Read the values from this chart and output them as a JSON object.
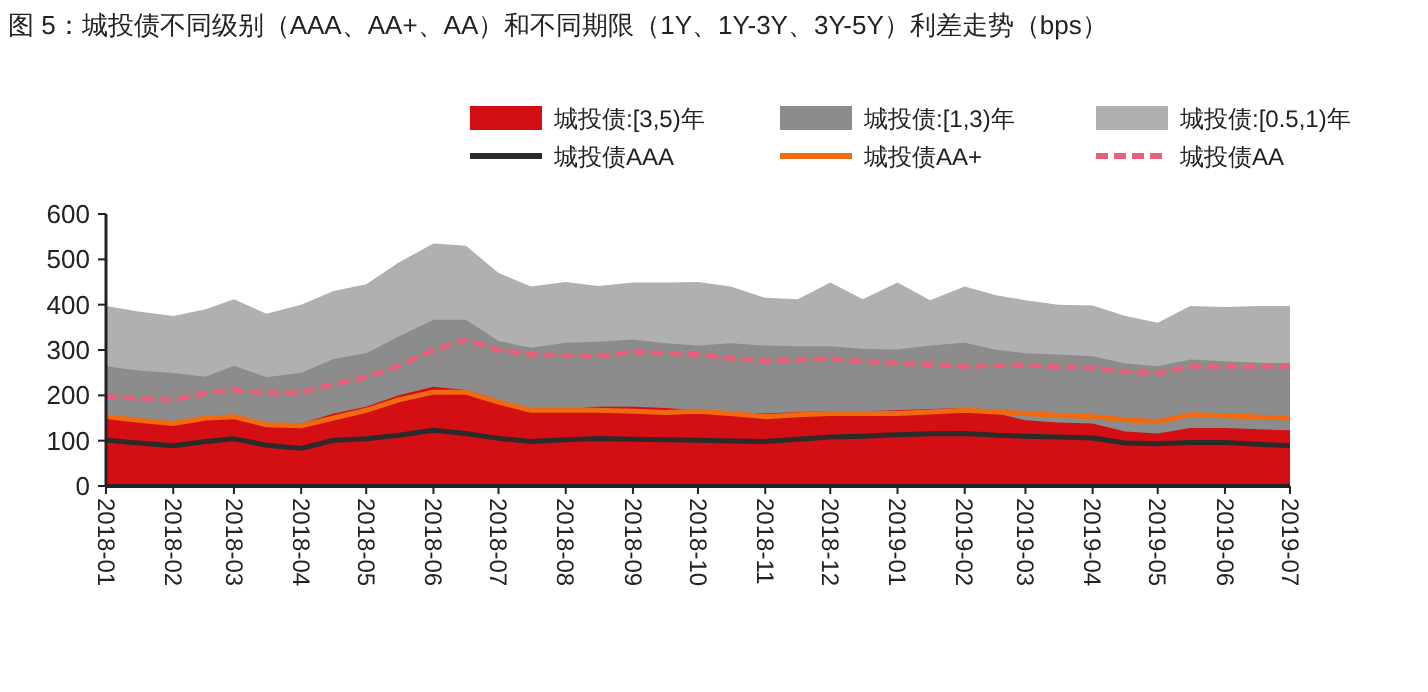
{
  "chart_data": {
    "type": "area",
    "title": "图 5：城投债不同级别（AAA、AA+、AA）和不同期限（1Y、1Y-3Y、3Y-5Y）利差走势（bps）",
    "x": [
      "2018-01-01",
      "2018-01-16",
      "2018-02-01",
      "2018-02-16",
      "2018-03-01",
      "2018-03-16",
      "2018-04-01",
      "2018-04-16",
      "2018-05-01",
      "2018-05-16",
      "2018-06-01",
      "2018-06-16",
      "2018-07-01",
      "2018-07-16",
      "2018-08-01",
      "2018-08-16",
      "2018-09-01",
      "2018-09-16",
      "2018-10-01",
      "2018-10-16",
      "2018-11-01",
      "2018-11-16",
      "2018-12-01",
      "2018-12-16",
      "2019-01-01",
      "2019-01-16",
      "2019-02-01",
      "2019-02-16",
      "2019-03-01",
      "2019-03-16",
      "2019-04-01",
      "2019-04-16",
      "2019-05-01",
      "2019-05-16",
      "2019-06-01",
      "2019-06-16",
      "2019-07-01"
    ],
    "series": [
      {
        "name": "城投债:[3,5)年",
        "color": "#d40f14",
        "values": [
          153,
          145,
          138,
          150,
          155,
          138,
          138,
          160,
          175,
          200,
          219,
          212,
          190,
          167,
          170,
          175,
          175,
          172,
          167,
          163,
          160,
          163,
          165,
          165,
          167,
          170,
          172,
          160,
          145,
          140,
          138,
          120,
          116,
          128,
          128,
          125,
          123
        ]
      },
      {
        "name": "城投债:[1,3)年",
        "color": "#8c8c8c",
        "values": [
          264,
          255,
          249,
          241,
          265,
          240,
          250,
          280,
          293,
          330,
          367,
          367,
          320,
          305,
          316,
          318,
          323,
          315,
          310,
          315,
          310,
          308,
          308,
          303,
          301,
          310,
          316,
          300,
          293,
          290,
          286,
          270,
          264,
          279,
          275,
          272,
          271
        ]
      },
      {
        "name": "城投债:[0.5,1)年",
        "color": "#b0b0b0",
        "values": [
          397,
          385,
          375,
          390,
          412,
          380,
          400,
          430,
          445,
          493,
          535,
          530,
          470,
          440,
          450,
          441,
          449,
          449,
          450,
          440,
          415,
          412,
          449,
          412,
          449,
          410,
          440,
          420,
          410,
          400,
          398,
          375,
          360,
          397,
          395,
          397,
          397
        ]
      },
      {
        "name": "城投债AAA",
        "type": "line",
        "color": "#2b2b2b",
        "values": [
          101,
          95,
          89,
          98,
          104,
          90,
          83,
          101,
          104,
          112,
          123,
          116,
          105,
          98,
          102,
          105,
          103,
          102,
          101,
          99,
          98,
          103,
          108,
          110,
          113,
          115,
          116,
          112,
          110,
          108,
          106,
          95,
          93,
          96,
          96,
          92,
          89
        ]
      },
      {
        "name": "城投债AA+",
        "type": "line",
        "color": "#f06a12",
        "values": [
          153,
          145,
          138,
          150,
          153,
          135,
          133,
          150,
          167,
          190,
          207,
          207,
          185,
          167,
          167,
          167,
          165,
          162,
          165,
          160,
          153,
          157,
          160,
          160,
          160,
          163,
          167,
          163,
          160,
          156,
          153,
          146,
          142,
          157,
          155,
          152,
          150
        ]
      },
      {
        "name": "城投债AA",
        "type": "line",
        "color": "#e8607a",
        "line_style": "dashed",
        "values": [
          197,
          193,
          190,
          205,
          212,
          205,
          206,
          225,
          240,
          265,
          300,
          323,
          300,
          290,
          288,
          286,
          296,
          292,
          290,
          282,
          276,
          278,
          281,
          275,
          271,
          268,
          264,
          266,
          267,
          263,
          261,
          252,
          249,
          264,
          264,
          264,
          264
        ]
      }
    ],
    "xlim": [
      "2018-01",
      "2019-07"
    ],
    "xticks": [
      "2018-01",
      "2018-02",
      "2018-03",
      "2018-04",
      "2018-05",
      "2018-06",
      "2018-07",
      "2018-08",
      "2018-09",
      "2018-10",
      "2018-11",
      "2018-12",
      "2019-01",
      "2019-02",
      "2019-03",
      "2019-04",
      "2019-05",
      "2019-06",
      "2019-07"
    ],
    "ylim": [
      0,
      600
    ],
    "yticks": [
      0,
      100,
      200,
      300,
      400,
      500,
      600
    ],
    "grid": false,
    "legend": "top"
  }
}
